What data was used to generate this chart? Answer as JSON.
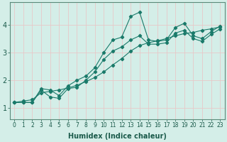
{
  "title": "",
  "xlabel": "Humidex (Indice chaleur)",
  "ylabel": "",
  "bg_color": "#d4eee8",
  "grid_color": "#e8c8c8",
  "line_color": "#1a7a6a",
  "xlim": [
    -0.5,
    23.5
  ],
  "ylim": [
    0.6,
    4.8
  ],
  "xticks": [
    0,
    1,
    2,
    3,
    4,
    5,
    6,
    7,
    8,
    9,
    10,
    11,
    12,
    13,
    14,
    15,
    16,
    17,
    18,
    19,
    20,
    21,
    22,
    23
  ],
  "yticks": [
    1,
    2,
    3,
    4
  ],
  "line1_x": [
    0,
    1,
    2,
    3,
    4,
    5,
    6,
    7,
    8,
    9,
    10,
    11,
    12,
    13,
    14,
    15,
    16,
    17,
    18,
    19,
    20,
    21,
    22,
    23
  ],
  "line1_y": [
    1.2,
    1.2,
    1.2,
    1.7,
    1.65,
    1.45,
    1.8,
    2.0,
    2.15,
    2.45,
    3.0,
    3.45,
    3.55,
    4.3,
    4.45,
    3.45,
    3.4,
    3.45,
    3.9,
    4.05,
    3.6,
    3.5,
    3.75,
    3.95
  ],
  "line2_x": [
    0,
    1,
    2,
    3,
    4,
    5,
    6,
    7,
    8,
    9,
    10,
    11,
    12,
    13,
    14,
    15,
    16,
    17,
    18,
    19,
    20,
    21,
    22,
    23
  ],
  "line2_y": [
    1.2,
    1.2,
    1.2,
    1.65,
    1.4,
    1.35,
    1.7,
    1.75,
    2.0,
    2.3,
    2.75,
    3.05,
    3.2,
    3.45,
    3.6,
    3.3,
    3.3,
    3.35,
    3.7,
    3.8,
    3.5,
    3.4,
    3.65,
    3.85
  ],
  "line3_x": [
    0,
    1,
    2,
    3,
    4,
    5,
    6,
    7,
    8,
    9,
    10,
    11,
    12,
    13,
    14,
    15,
    16,
    17,
    18,
    19,
    20,
    21,
    22,
    23
  ],
  "line3_y": [
    1.2,
    1.25,
    1.3,
    1.55,
    1.6,
    1.65,
    1.72,
    1.82,
    1.95,
    2.1,
    2.3,
    2.55,
    2.78,
    3.05,
    3.25,
    3.35,
    3.42,
    3.5,
    3.6,
    3.68,
    3.72,
    3.8,
    3.85,
    3.92
  ],
  "xlabel_fontsize": 7,
  "tick_fontsize": 5.5,
  "ytick_fontsize": 7
}
